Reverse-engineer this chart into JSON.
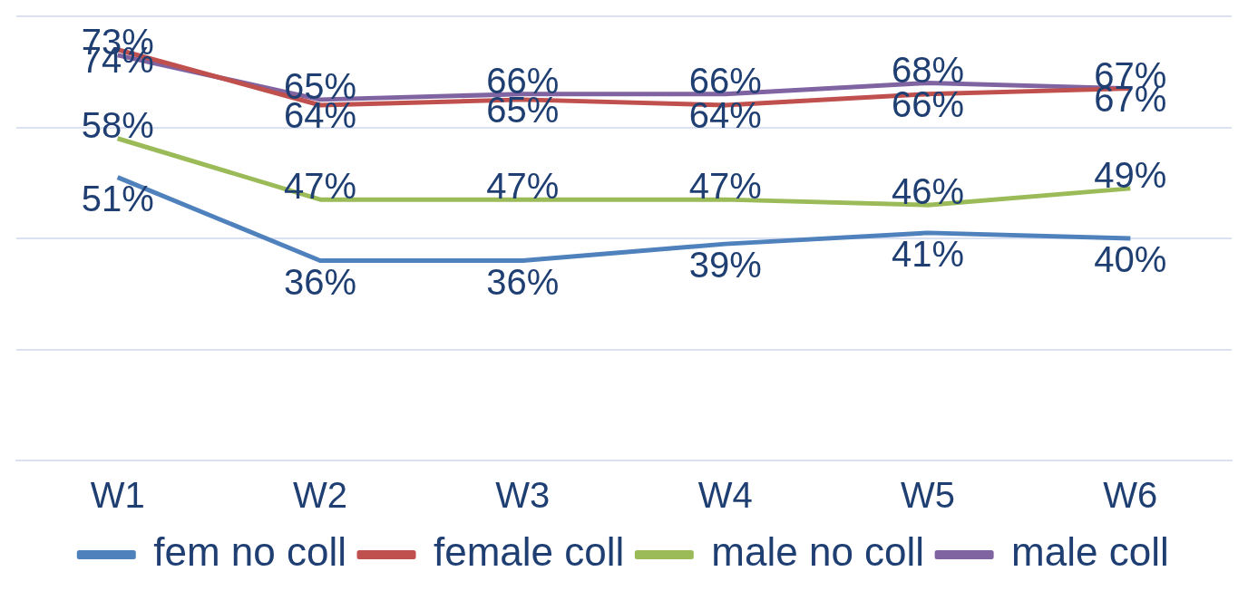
{
  "chart_data": {
    "type": "line",
    "categories": [
      "W1",
      "W2",
      "W3",
      "W4",
      "W5",
      "W6"
    ],
    "series": [
      {
        "name": "fem no coll",
        "color": "#4f81bd",
        "values": [
          51,
          36,
          36,
          39,
          41,
          40
        ],
        "value_labels": [
          "51%",
          "36%",
          "36%",
          "39%",
          "41%",
          "40%"
        ]
      },
      {
        "name": "female coll",
        "color": "#c0504d",
        "values": [
          74,
          64,
          65,
          64,
          66,
          67
        ],
        "value_labels": [
          "74%",
          "64%",
          "65%",
          "64%",
          "66%",
          "67%"
        ]
      },
      {
        "name": "male no coll",
        "color": "#9bbb59",
        "values": [
          58,
          47,
          47,
          47,
          46,
          49
        ],
        "value_labels": [
          "58%",
          "47%",
          "47%",
          "47%",
          "46%",
          "49%"
        ]
      },
      {
        "name": "male coll",
        "color": "#8064a2",
        "values": [
          73,
          65,
          66,
          66,
          68,
          67
        ],
        "value_labels": [
          "73%",
          "65%",
          "66%",
          "66%",
          "68%",
          "67%"
        ]
      }
    ],
    "ylim": [
      0,
      80
    ],
    "yticks": [
      {
        "value": 0,
        "label": null
      },
      {
        "value": 20,
        "label": null
      },
      {
        "value": 40,
        "label": null
      },
      {
        "value": 60,
        "label": null
      },
      {
        "value": 80,
        "label": null
      }
    ],
    "tick_labels": "x",
    "grid": "y",
    "legend": "bottom",
    "marker": "none",
    "line_style": "solid"
  }
}
